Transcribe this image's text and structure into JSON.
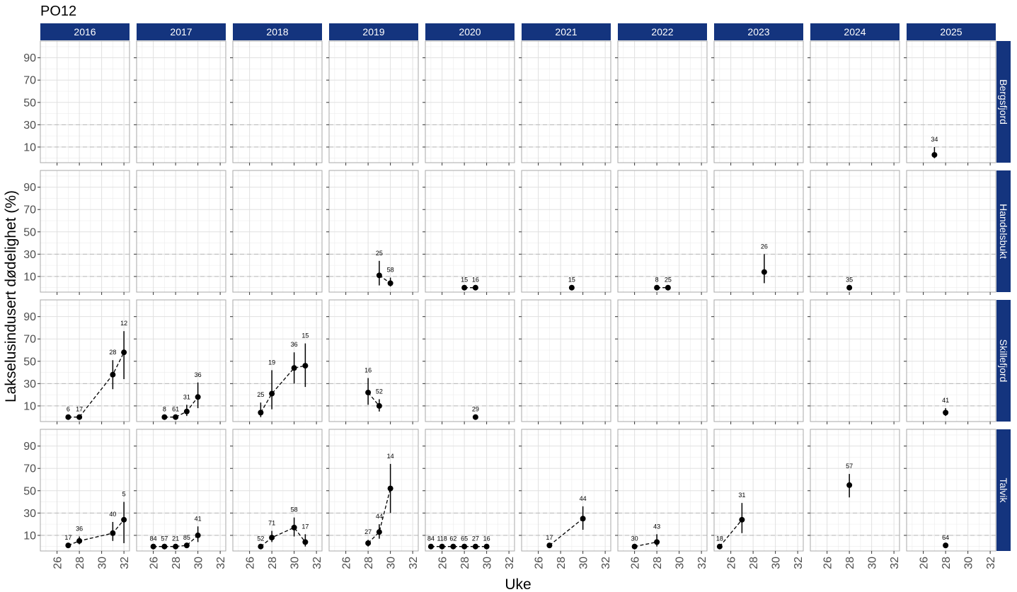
{
  "title": "PO12",
  "chart_data": {
    "type": "scatter",
    "title": "PO12",
    "xlabel": "Uke",
    "ylabel": "Lakselusindusert dødelighet (%)",
    "xlim": [
      24.5,
      32.5
    ],
    "ylim": [
      -4,
      105
    ],
    "x_ticks": [
      26,
      28,
      30,
      32
    ],
    "y_ticks": [
      10,
      30,
      50,
      70,
      90
    ],
    "reference_lines_y": [
      10,
      30
    ],
    "grid": true,
    "years": [
      "2016",
      "2017",
      "2018",
      "2019",
      "2020",
      "2021",
      "2022",
      "2023",
      "2024",
      "2025"
    ],
    "sites": [
      "Bergsfjord",
      "Handelsbukt",
      "Skillefjord",
      "Talvik"
    ],
    "panels": [
      {
        "site": "Bergsfjord",
        "year": "2025",
        "points": [
          {
            "x": 27,
            "y": 3,
            "lo": 0,
            "hi": 10,
            "n": "34"
          }
        ]
      },
      {
        "site": "Handelsbukt",
        "year": "2019",
        "points": [
          {
            "x": 29,
            "y": 11,
            "lo": 2,
            "hi": 24,
            "n": "25"
          },
          {
            "x": 30,
            "y": 4,
            "lo": 1,
            "hi": 9,
            "n": "58"
          }
        ]
      },
      {
        "site": "Handelsbukt",
        "year": "2020",
        "points": [
          {
            "x": 28,
            "y": 0,
            "n": "15"
          },
          {
            "x": 29,
            "y": 0,
            "n": "16"
          }
        ]
      },
      {
        "site": "Handelsbukt",
        "year": "2021",
        "points": [
          {
            "x": 29,
            "y": 0,
            "n": "15"
          }
        ]
      },
      {
        "site": "Handelsbukt",
        "year": "2022",
        "points": [
          {
            "x": 28,
            "y": 0,
            "n": "8"
          },
          {
            "x": 29,
            "y": 0,
            "n": "25"
          }
        ]
      },
      {
        "site": "Handelsbukt",
        "year": "2023",
        "points": [
          {
            "x": 29,
            "y": 14,
            "lo": 4,
            "hi": 30,
            "n": "26"
          }
        ]
      },
      {
        "site": "Handelsbukt",
        "year": "2024",
        "points": [
          {
            "x": 28,
            "y": 0,
            "n": "35"
          }
        ]
      },
      {
        "site": "Skillefjord",
        "year": "2016",
        "points": [
          {
            "x": 27,
            "y": 0,
            "n": "6"
          },
          {
            "x": 28,
            "y": 0,
            "n": "17"
          },
          {
            "x": 31,
            "y": 38,
            "lo": 25,
            "hi": 51,
            "n": "28"
          },
          {
            "x": 32,
            "y": 58,
            "lo": 34,
            "hi": 77,
            "n": "12"
          }
        ]
      },
      {
        "site": "Skillefjord",
        "year": "2017",
        "points": [
          {
            "x": 27,
            "y": 0,
            "n": "8"
          },
          {
            "x": 28,
            "y": 0,
            "n": "61"
          },
          {
            "x": 29,
            "y": 5,
            "lo": 1,
            "hi": 11,
            "n": "31"
          },
          {
            "x": 30,
            "y": 18,
            "lo": 8,
            "hi": 31,
            "n": "36"
          }
        ]
      },
      {
        "site": "Skillefjord",
        "year": "2018",
        "points": [
          {
            "x": 27,
            "y": 4,
            "lo": 0,
            "hi": 13,
            "n": "25"
          },
          {
            "x": 28,
            "y": 21,
            "lo": 7,
            "hi": 42,
            "n": "19"
          },
          {
            "x": 30,
            "y": 44,
            "lo": 30,
            "hi": 58,
            "n": "36"
          },
          {
            "x": 31,
            "y": 46,
            "lo": 27,
            "hi": 66,
            "n": "15"
          }
        ]
      },
      {
        "site": "Skillefjord",
        "year": "2019",
        "points": [
          {
            "x": 28,
            "y": 22,
            "lo": 11,
            "hi": 35,
            "n": "16"
          },
          {
            "x": 29,
            "y": 10,
            "lo": 5,
            "hi": 16,
            "n": "52"
          }
        ]
      },
      {
        "site": "Skillefjord",
        "year": "2020",
        "points": [
          {
            "x": 29,
            "y": 0,
            "n": "29"
          }
        ]
      },
      {
        "site": "Skillefjord",
        "year": "2025",
        "points": [
          {
            "x": 28,
            "y": 4,
            "lo": 1,
            "hi": 8,
            "n": "41"
          }
        ]
      },
      {
        "site": "Talvik",
        "year": "2016",
        "points": [
          {
            "x": 27,
            "y": 1,
            "n": "17"
          },
          {
            "x": 28,
            "y": 5,
            "lo": 2,
            "hi": 9,
            "n": "36"
          },
          {
            "x": 31,
            "y": 12,
            "lo": 5,
            "hi": 22,
            "n": "40"
          },
          {
            "x": 32,
            "y": 24,
            "lo": 3,
            "hi": 40,
            "n": "5"
          }
        ]
      },
      {
        "site": "Talvik",
        "year": "2017",
        "points": [
          {
            "x": 26,
            "y": 0,
            "n": "84"
          },
          {
            "x": 27,
            "y": 0,
            "n": "57"
          },
          {
            "x": 28,
            "y": 0,
            "n": "21"
          },
          {
            "x": 29,
            "y": 1,
            "n": "85"
          },
          {
            "x": 30,
            "y": 10,
            "lo": 4,
            "hi": 18,
            "n": "41"
          }
        ]
      },
      {
        "site": "Talvik",
        "year": "2018",
        "points": [
          {
            "x": 27,
            "y": 0,
            "n": "52"
          },
          {
            "x": 28,
            "y": 8,
            "lo": 4,
            "hi": 14,
            "n": "71"
          },
          {
            "x": 30,
            "y": 17,
            "lo": 9,
            "hi": 26,
            "n": "58"
          },
          {
            "x": 31,
            "y": 4,
            "lo": 0,
            "hi": 11,
            "n": "17"
          }
        ]
      },
      {
        "site": "Talvik",
        "year": "2019",
        "points": [
          {
            "x": 28,
            "y": 3,
            "lo": 0,
            "hi": 6,
            "n": "27"
          },
          {
            "x": 29,
            "y": 13,
            "lo": 7,
            "hi": 20,
            "n": "44"
          },
          {
            "x": 30,
            "y": 52,
            "lo": 30,
            "hi": 74,
            "n": "14"
          }
        ]
      },
      {
        "site": "Talvik",
        "year": "2020",
        "points": [
          {
            "x": 25,
            "y": 0,
            "n": "84"
          },
          {
            "x": 26,
            "y": 0,
            "n": "118"
          },
          {
            "x": 27,
            "y": 0,
            "n": "62"
          },
          {
            "x": 28,
            "y": 0,
            "n": "65"
          },
          {
            "x": 29,
            "y": 0,
            "n": "27"
          },
          {
            "x": 30,
            "y": 0,
            "n": "16"
          }
        ]
      },
      {
        "site": "Talvik",
        "year": "2021",
        "points": [
          {
            "x": 27,
            "y": 1,
            "n": "17"
          },
          {
            "x": 30,
            "y": 25,
            "lo": 15,
            "hi": 36,
            "n": "44"
          }
        ]
      },
      {
        "site": "Talvik",
        "year": "2022",
        "points": [
          {
            "x": 26,
            "y": 0,
            "n": "30"
          },
          {
            "x": 28,
            "y": 4,
            "lo": 0,
            "hi": 11,
            "n": "43"
          }
        ]
      },
      {
        "site": "Talvik",
        "year": "2023",
        "points": [
          {
            "x": 25,
            "y": 0,
            "n": "18"
          },
          {
            "x": 27,
            "y": 24,
            "lo": 12,
            "hi": 39,
            "n": "31"
          }
        ]
      },
      {
        "site": "Talvik",
        "year": "2024",
        "points": [
          {
            "x": 28,
            "y": 55,
            "lo": 44,
            "hi": 65,
            "n": "57"
          }
        ]
      },
      {
        "site": "Talvik",
        "year": "2025",
        "points": [
          {
            "x": 28,
            "y": 1,
            "n": "64"
          }
        ]
      }
    ]
  }
}
